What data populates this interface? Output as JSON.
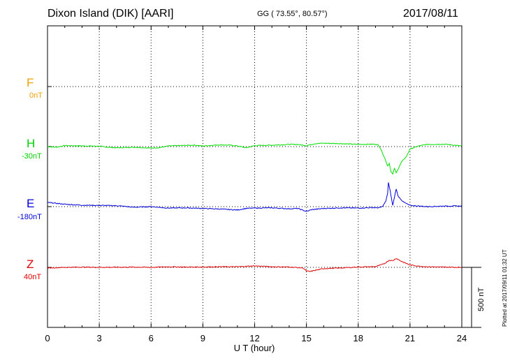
{
  "header": {
    "title": "Dixon Island (DIK)  [AARI]",
    "coords": "GG ( 73.55°,  80.57°)",
    "date": "2017/08/11"
  },
  "plotted_note": "Plotted at 2017/09/11 01:32 UT",
  "scale_bar_label": "500 nT",
  "chart_data": {
    "type": "line",
    "xlabel": "U T (hour)",
    "xlim": [
      0,
      24
    ],
    "x_ticks": [
      "0",
      "3",
      "6",
      "9",
      "12",
      "15",
      "18",
      "21",
      "24"
    ],
    "grid": true,
    "units": "nT",
    "scale_bar_nT": 500,
    "components": [
      {
        "name": "F",
        "baseline": "0nT",
        "color": "#f0a000",
        "offset_nT": 0,
        "values": []
      },
      {
        "name": "H",
        "baseline": "-30nT",
        "color": "#00e000",
        "offset_nT": 0,
        "values": [
          [
            0,
            0
          ],
          [
            0.5,
            -5
          ],
          [
            1,
            8
          ],
          [
            2,
            6
          ],
          [
            3,
            3
          ],
          [
            3.5,
            -5
          ],
          [
            4,
            -10
          ],
          [
            5,
            -5
          ],
          [
            6,
            -12
          ],
          [
            6.5,
            -8
          ],
          [
            7,
            5
          ],
          [
            8,
            10
          ],
          [
            8.5,
            12
          ],
          [
            9,
            5
          ],
          [
            10,
            15
          ],
          [
            10.5,
            12
          ],
          [
            11,
            6
          ],
          [
            11.5,
            -10
          ],
          [
            12,
            8
          ],
          [
            13,
            12
          ],
          [
            14,
            18
          ],
          [
            14.5,
            18
          ],
          [
            15,
            8
          ],
          [
            15.5,
            25
          ],
          [
            16,
            28
          ],
          [
            17,
            25
          ],
          [
            18,
            18
          ],
          [
            19,
            20
          ],
          [
            19.2,
            10
          ],
          [
            19.4,
            -50
          ],
          [
            19.6,
            -120
          ],
          [
            19.7,
            -160
          ],
          [
            19.8,
            -140
          ],
          [
            19.9,
            -210
          ],
          [
            20,
            -230
          ],
          [
            20.1,
            -180
          ],
          [
            20.2,
            -220
          ],
          [
            20.5,
            -130
          ],
          [
            20.8,
            -80
          ],
          [
            21,
            -20
          ],
          [
            21.5,
            5
          ],
          [
            22,
            18
          ],
          [
            23,
            20
          ],
          [
            24,
            5
          ]
        ]
      },
      {
        "name": "E",
        "baseline": "-180nT",
        "color": "#0000dd",
        "offset_nT": 0,
        "values": [
          [
            0,
            35
          ],
          [
            1,
            20
          ],
          [
            2,
            12
          ],
          [
            3,
            10
          ],
          [
            4,
            8
          ],
          [
            5,
            -5
          ],
          [
            6,
            0
          ],
          [
            7,
            -12
          ],
          [
            8,
            -10
          ],
          [
            9,
            -15
          ],
          [
            10,
            -20
          ],
          [
            11,
            -28
          ],
          [
            11.5,
            -15
          ],
          [
            12,
            -12
          ],
          [
            13,
            -10
          ],
          [
            14,
            -18
          ],
          [
            14.5,
            -15
          ],
          [
            15,
            -40
          ],
          [
            15.3,
            -25
          ],
          [
            16,
            -15
          ],
          [
            17,
            -10
          ],
          [
            18,
            -12
          ],
          [
            18.8,
            -8
          ],
          [
            19.2,
            -10
          ],
          [
            19.4,
            0
          ],
          [
            19.6,
            45
          ],
          [
            19.7,
            110
          ],
          [
            19.75,
            200
          ],
          [
            19.85,
            130
          ],
          [
            20,
            10
          ],
          [
            20.1,
            80
          ],
          [
            20.2,
            150
          ],
          [
            20.3,
            90
          ],
          [
            20.6,
            40
          ],
          [
            21,
            10
          ],
          [
            21.5,
            5
          ],
          [
            22,
            0
          ],
          [
            23,
            5
          ],
          [
            24,
            5
          ]
        ]
      },
      {
        "name": "Z",
        "baseline": "40nT",
        "color": "#e00000",
        "offset_nT": 0,
        "values": [
          [
            0,
            -5
          ],
          [
            1,
            0
          ],
          [
            2,
            2
          ],
          [
            3,
            0
          ],
          [
            4,
            1
          ],
          [
            5,
            2
          ],
          [
            6,
            0
          ],
          [
            7,
            5
          ],
          [
            8,
            2
          ],
          [
            9,
            3
          ],
          [
            10,
            5
          ],
          [
            11,
            5
          ],
          [
            12,
            12
          ],
          [
            13,
            5
          ],
          [
            14,
            3
          ],
          [
            14.8,
            -5
          ],
          [
            15,
            -30
          ],
          [
            15.2,
            -35
          ],
          [
            15.5,
            -25
          ],
          [
            16,
            -10
          ],
          [
            17,
            -5
          ],
          [
            18,
            3
          ],
          [
            19,
            6
          ],
          [
            19.5,
            30
          ],
          [
            19.8,
            60
          ],
          [
            20,
            55
          ],
          [
            20.2,
            75
          ],
          [
            20.5,
            50
          ],
          [
            21,
            20
          ],
          [
            21.5,
            10
          ],
          [
            22,
            5
          ],
          [
            23,
            2
          ],
          [
            24,
            0
          ]
        ]
      }
    ]
  }
}
